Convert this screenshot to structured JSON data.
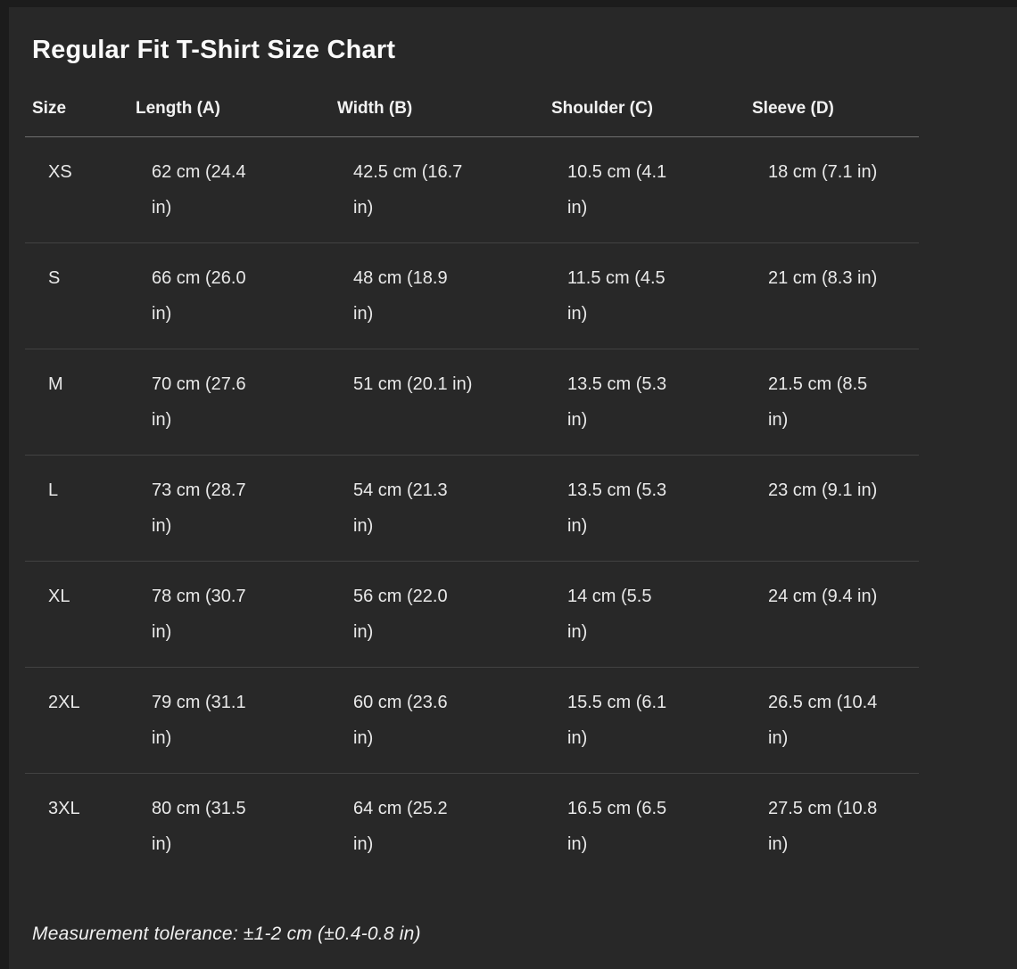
{
  "title": "Regular Fit T-Shirt Size Chart",
  "footnote": "Measurement tolerance: ±1-2 cm (±0.4-0.8 in)",
  "colors": {
    "panel_background": "#282828",
    "page_edge": "#1c1c1c",
    "title_text": "#fafafa",
    "body_text": "#e9e9e9",
    "header_divider": "#6f6f6f",
    "row_divider": "#424242"
  },
  "table": {
    "columns": [
      "Size",
      "Length (A)",
      "Width (B)",
      "Shoulder (C)",
      "Sleeve (D)"
    ],
    "rows": [
      [
        "XS",
        "62 cm (24.4\nin)",
        "42.5 cm (16.7\nin)",
        "10.5 cm (4.1\nin)",
        "18 cm (7.1 in)"
      ],
      [
        "S",
        "66 cm (26.0\nin)",
        "48 cm (18.9\nin)",
        "11.5 cm (4.5\nin)",
        "21 cm (8.3 in)"
      ],
      [
        "M",
        "70 cm (27.6\nin)",
        "51 cm (20.1 in)",
        "13.5 cm (5.3\nin)",
        "21.5 cm (8.5\nin)"
      ],
      [
        "L",
        "73 cm (28.7\nin)",
        "54 cm (21.3\nin)",
        "13.5 cm (5.3\nin)",
        "23 cm (9.1 in)"
      ],
      [
        "XL",
        "78 cm (30.7\nin)",
        "56 cm (22.0\nin)",
        "14 cm (5.5\nin)",
        "24 cm (9.4 in)"
      ],
      [
        "2XL",
        "79 cm (31.1\nin)",
        "60 cm (23.6\nin)",
        "15.5 cm (6.1\nin)",
        "26.5 cm (10.4\nin)"
      ],
      [
        "3XL",
        "80 cm (31.5\nin)",
        "64 cm (25.2\nin)",
        "16.5 cm (6.5\nin)",
        "27.5 cm (10.8\nin)"
      ]
    ]
  },
  "chart_data": {
    "type": "table",
    "title": "Regular Fit T-Shirt Size Chart",
    "columns": [
      "Size",
      "Length (A)",
      "Width (B)",
      "Shoulder (C)",
      "Sleeve (D)"
    ],
    "rows": [
      [
        "XS",
        "62 cm (24.4 in)",
        "42.5 cm (16.7 in)",
        "10.5 cm (4.1 in)",
        "18 cm (7.1 in)"
      ],
      [
        "S",
        "66 cm (26.0 in)",
        "48 cm (18.9 in)",
        "11.5 cm (4.5 in)",
        "21 cm (8.3 in)"
      ],
      [
        "M",
        "70 cm (27.6 in)",
        "51 cm (20.1 in)",
        "13.5 cm (5.3 in)",
        "21.5 cm (8.5 in)"
      ],
      [
        "L",
        "73 cm (28.7 in)",
        "54 cm (21.3 in)",
        "13.5 cm (5.3 in)",
        "23 cm (9.1 in)"
      ],
      [
        "XL",
        "78 cm (30.7 in)",
        "56 cm (22.0 in)",
        "14 cm (5.5 in)",
        "24 cm (9.4 in)"
      ],
      [
        "2XL",
        "79 cm (31.1 in)",
        "60 cm (23.6 in)",
        "15.5 cm (6.1 in)",
        "26.5 cm (10.4 in)"
      ],
      [
        "3XL",
        "80 cm (31.5 in)",
        "64 cm (25.2 in)",
        "16.5 cm (6.5 in)",
        "27.5 cm (10.8 in)"
      ]
    ],
    "footnote": "Measurement tolerance: ±1-2 cm (±0.4-0.8 in)"
  }
}
